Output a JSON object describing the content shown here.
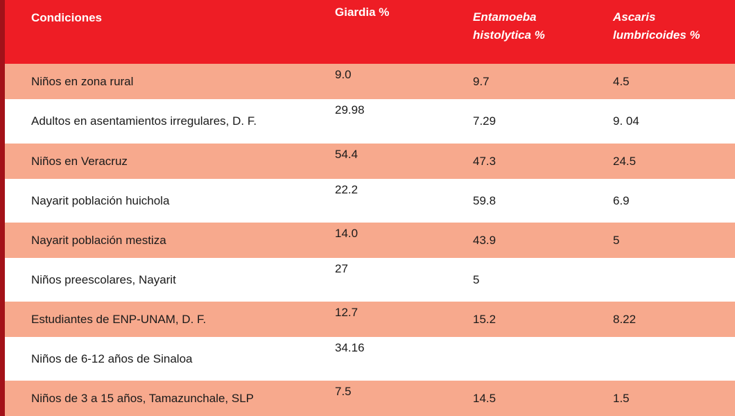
{
  "table": {
    "headers": {
      "condiciones": "Condiciones",
      "giardia": "Giardia %",
      "entamoeba_line1": "Entamoeba",
      "entamoeba_line2": "histolytica %",
      "ascaris_line1": "Ascaris",
      "ascaris_line2": "lumbricoides %"
    },
    "rows": [
      {
        "condicion": "Niños en zona rural",
        "giardia": "9.0",
        "entamoeba": "9.7",
        "ascaris": "4.5"
      },
      {
        "condicion": "Adultos en asentamientos irregulares, D. F.",
        "giardia": "29.98",
        "entamoeba": "7.29",
        "ascaris": "9. 04"
      },
      {
        "condicion": "Niños en Veracruz",
        "giardia": "54.4",
        "entamoeba": "47.3",
        "ascaris": "24.5"
      },
      {
        "condicion": "Nayarit población huichola",
        "giardia": "22.2",
        "entamoeba": "59.8",
        "ascaris": "6.9"
      },
      {
        "condicion": "Nayarit población mestiza",
        "giardia": "14.0",
        "entamoeba": "43.9",
        "ascaris": "5"
      },
      {
        "condicion": "Niños preescolares, Nayarit",
        "giardia": "27",
        "entamoeba": "5",
        "ascaris": ""
      },
      {
        "condicion": "Estudiantes de ENP-UNAM, D. F.",
        "giardia": "12.7",
        "entamoeba": "15.2",
        "ascaris": "8.22"
      },
      {
        "condicion": "Niños de 6-12 años de Sinaloa",
        "giardia": "34.16",
        "entamoeba": "",
        "ascaris": ""
      },
      {
        "condicion": "Niños de 3 a 15 años, Tamazunchale, SLP",
        "giardia": "7.5",
        "entamoeba": "14.5",
        "ascaris": "1.5"
      }
    ]
  },
  "colors": {
    "header_bg": "#ee1d25",
    "shaded_row_bg": "#f7a98d",
    "left_bar": "#a31219"
  }
}
